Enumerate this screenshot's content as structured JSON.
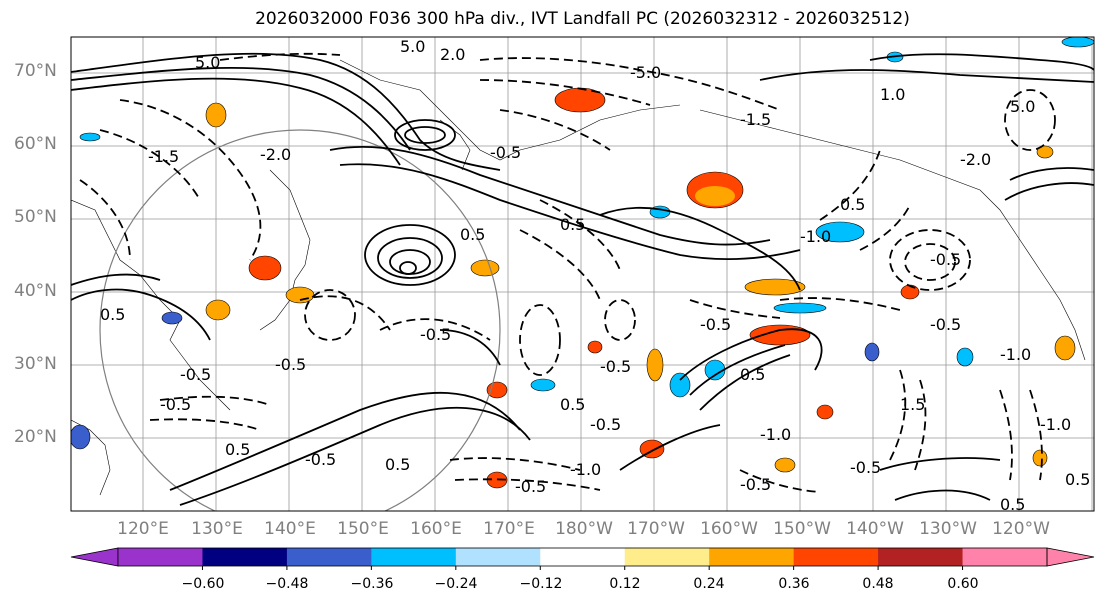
{
  "title": "2026032000 F036 300 hPa div., IVT Landfall PC (2026032312 - 2026032512)",
  "lat_labels": [
    "70°N",
    "60°N",
    "50°N",
    "40°N",
    "30°N",
    "20°N"
  ],
  "lon_labels": [
    "120°E",
    "130°E",
    "140°E",
    "150°E",
    "160°E",
    "170°E",
    "180°W",
    "170°W",
    "160°W",
    "150°W",
    "140°W",
    "130°W",
    "120°W"
  ],
  "colorbar": {
    "colors": [
      "#9933cc",
      "#000080",
      "#3a5fcd",
      "#00bfff",
      "#b0e2ff",
      "#ffffff",
      "#ffec8b",
      "#ffa500",
      "#ff4500",
      "#b22222",
      "#ff82ab"
    ],
    "ticks": [
      "−0.60",
      "−0.48",
      "−0.36",
      "−0.24",
      "−0.12",
      "0.12",
      "0.24",
      "0.36",
      "0.48",
      "0.60"
    ]
  },
  "contour_labels": [
    "5.0",
    "5.0",
    "2.0",
    "-5.0",
    "-1.5",
    "-2.0",
    "-1.5",
    "-0.5",
    "0.5",
    "-1.0",
    "1.0",
    "-0.5",
    "-0.5",
    "0.5",
    "0.5",
    "-0.5",
    "0.5",
    "-0.5",
    "-1.0",
    "1.5",
    "0.5",
    "-0.5",
    "-0.5",
    "-0.5",
    "0.5",
    "-1.0",
    "0.5",
    "-1.0",
    "-0.5",
    "0.5",
    "-0.5",
    "-0.5",
    "0.5",
    "-0.5",
    "-0.5",
    "5.0",
    "-2.0",
    "-0.5",
    "0.5",
    "-1.0"
  ]
}
